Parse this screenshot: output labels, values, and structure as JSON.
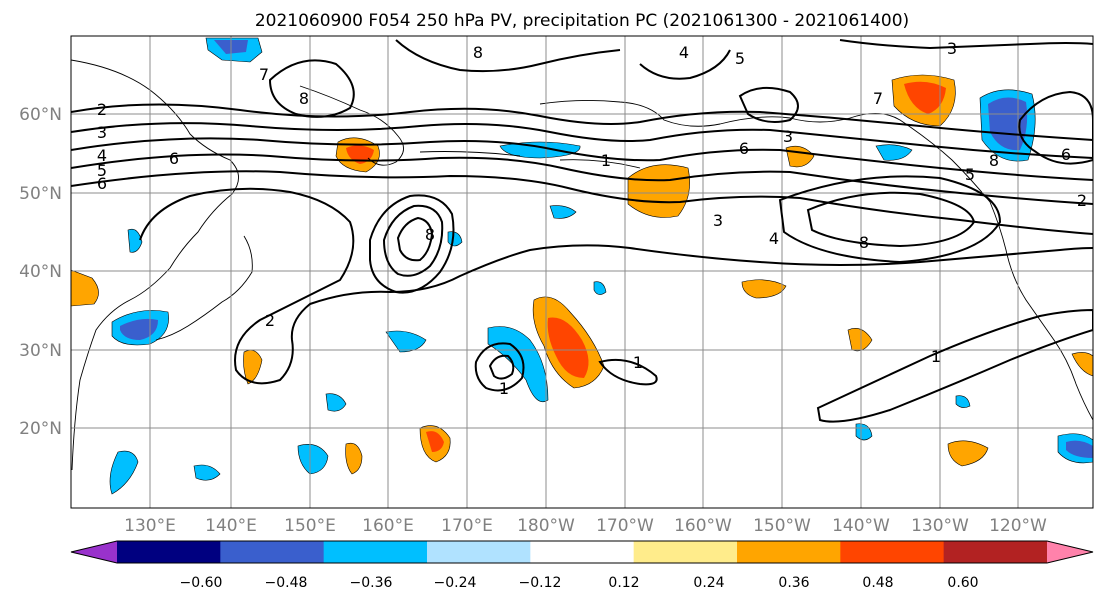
{
  "title": "2021060900 F054 250 hPa PV, precipitation PC (2021061300 - 2021061400)",
  "lat_labels": [
    "60°N",
    "50°N",
    "40°N",
    "30°N",
    "20°N"
  ],
  "lon_labels": [
    "130°E",
    "140°E",
    "150°E",
    "160°E",
    "170°E",
    "180°W",
    "170°W",
    "160°W",
    "150°W",
    "140°W",
    "130°W",
    "120°W"
  ],
  "colorbar": {
    "tick_labels": [
      "−0.60",
      "−0.48",
      "−0.36",
      "−0.24",
      "−0.12",
      "0.12",
      "0.24",
      "0.36",
      "0.48",
      "0.60"
    ],
    "colors": [
      "#9932cc",
      "#000080",
      "#3a5fcd",
      "#00bfff",
      "#b0e2ff",
      "#ffffff",
      "#ffec8b",
      "#ffa500",
      "#ff4500",
      "#b22222",
      "#ff82ab"
    ]
  },
  "contour_labels": {
    "pv_8a": "8",
    "pv_8b": "8",
    "pv_8c": "8",
    "pv_8d": "8",
    "pv_8e": "8",
    "pv_7a": "7",
    "pv_7b": "7",
    "pv_6a": "6",
    "pv_6b": "6",
    "pv_6c": "6",
    "pv_5a": "5",
    "pv_5b": "5",
    "pv_4a": "4",
    "pv_4b": "4",
    "pv_3a": "3",
    "pv_3b": "3",
    "pv_3c": "3",
    "pv_2a": "2",
    "pv_2b": "2",
    "pv_1a": "1",
    "pv_1b": "1",
    "pv_1c": "1",
    "pv_1d": "1"
  },
  "edge_labels": [
    "2",
    "3",
    "4",
    "5",
    "6"
  ]
}
